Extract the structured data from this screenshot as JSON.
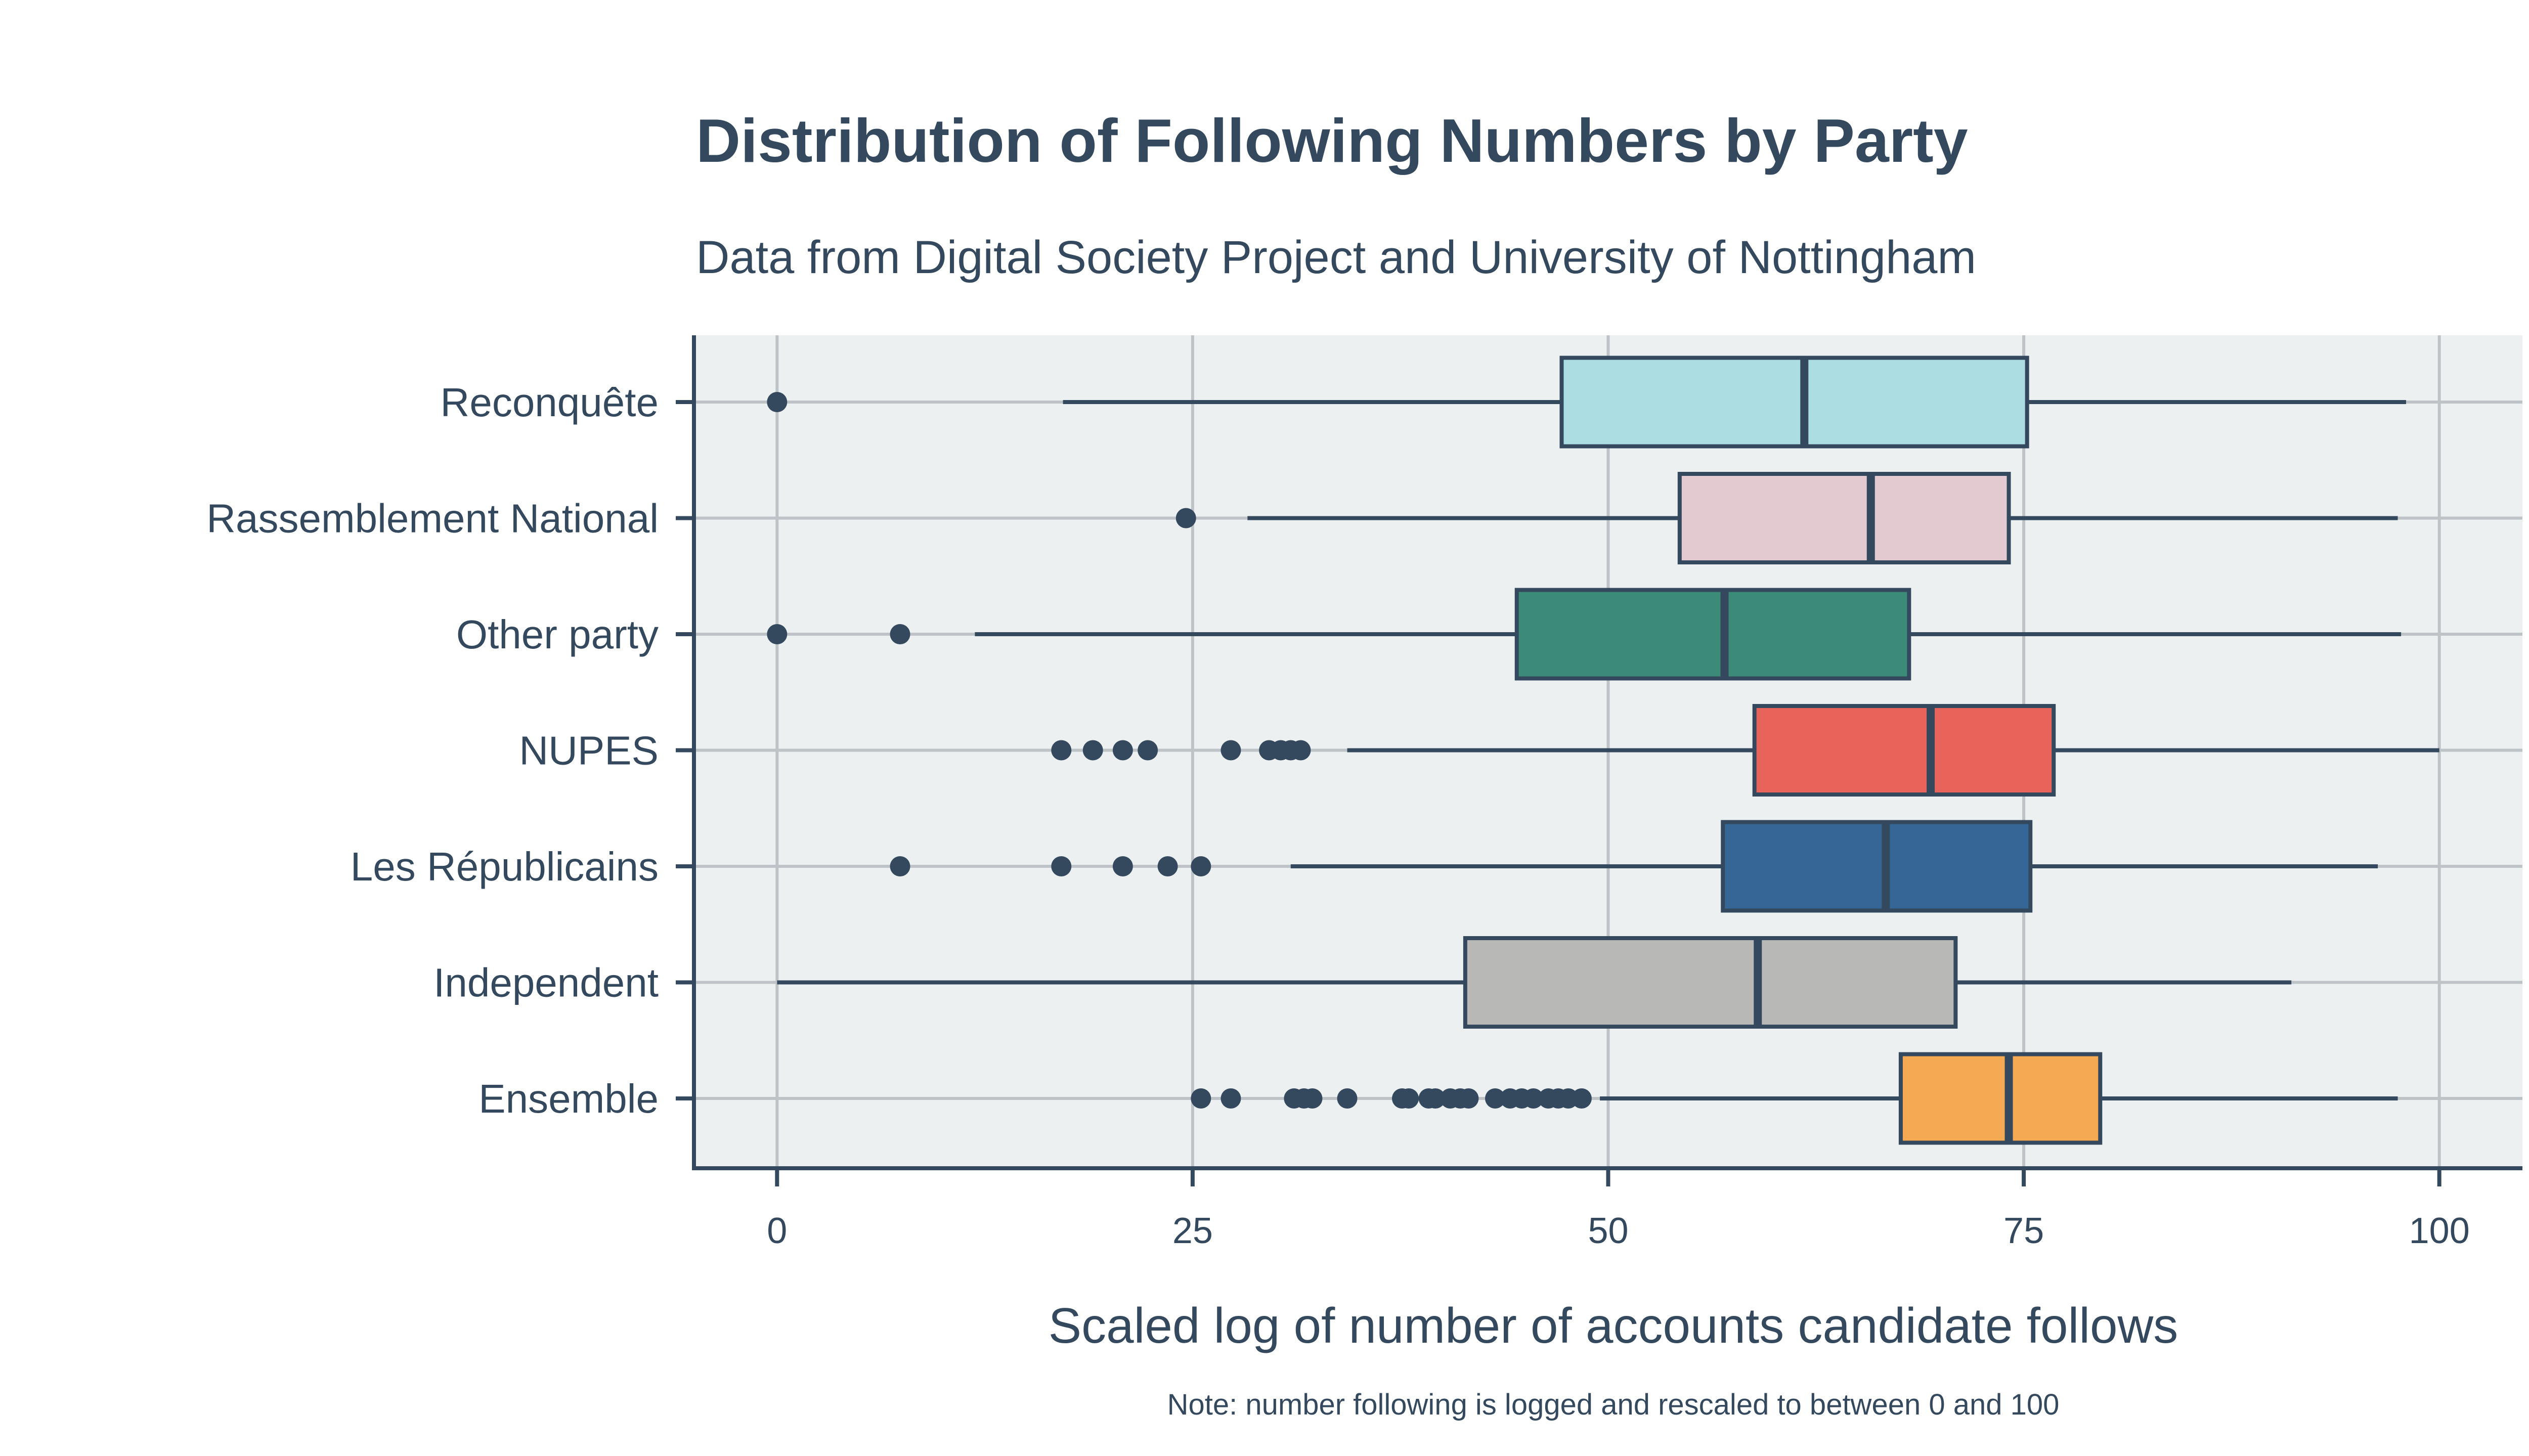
{
  "chart_data": {
    "type": "boxplot",
    "title": "Distribution of Following Numbers by Party",
    "subtitle": "Data from Digital Society Project and University of Nottingham",
    "xlabel": "Scaled log of number of accounts candidate follows",
    "note": "Note: number following is logged and rescaled to between 0 and 100",
    "xlim": [
      -5,
      105
    ],
    "xticks": [
      0,
      25,
      50,
      75,
      100
    ],
    "xtick_labels": [
      "0",
      "25",
      "50",
      "75",
      "100"
    ],
    "grid": true,
    "text_color": "#34495e",
    "panel_color": "#ecf0f1",
    "grid_color": "#bdc3c7",
    "categories": [
      "Reconquête",
      "Rassemblement National",
      "Other party",
      "NUPES",
      "Les Républicains",
      "Independent",
      "Ensemble"
    ],
    "boxes": [
      {
        "category": "Reconquête",
        "whisker_low": 17.2,
        "q1": 47.2,
        "median": 61.8,
        "q3": 75.2,
        "whisker_high": 98.0,
        "outliers": [
          0
        ],
        "color": "#abdde2"
      },
      {
        "category": "Rassemblement National",
        "whisker_low": 28.3,
        "q1": 54.3,
        "median": 65.8,
        "q3": 74.1,
        "whisker_high": 97.5,
        "outliers": [
          24.6
        ],
        "color": "#e3cad0"
      },
      {
        "category": "Other party",
        "whisker_low": 11.9,
        "q1": 44.5,
        "median": 57.0,
        "q3": 68.1,
        "whisker_high": 97.7,
        "outliers": [
          0,
          7.4
        ],
        "color": "#3c8a78"
      },
      {
        "category": "NUPES",
        "whisker_low": 34.3,
        "q1": 58.8,
        "median": 69.4,
        "q3": 76.8,
        "whisker_high": 100,
        "outliers": [
          17.1,
          19.0,
          20.8,
          22.3,
          27.3,
          29.6,
          30.3,
          30.9,
          31.5
        ],
        "color": "#e8635a"
      },
      {
        "category": "Les Républicains",
        "whisker_low": 30.9,
        "q1": 56.9,
        "median": 66.7,
        "q3": 75.4,
        "whisker_high": 96.3,
        "outliers": [
          7.4,
          17.1,
          20.8,
          23.5,
          25.5
        ],
        "color": "#356696"
      },
      {
        "category": "Independent",
        "whisker_low": 0,
        "q1": 41.4,
        "median": 59.0,
        "q3": 70.9,
        "whisker_high": 91.1,
        "outliers": [],
        "color": "#b8b8b6"
      },
      {
        "category": "Ensemble",
        "whisker_low": 49.5,
        "q1": 67.6,
        "median": 74.1,
        "q3": 79.6,
        "whisker_high": 97.5,
        "outliers": [
          25.5,
          27.3,
          31.1,
          31.7,
          32.2,
          34.3,
          37.6,
          38.0,
          39.2,
          39.6,
          40.5,
          41.1,
          41.6,
          43.2,
          44.1,
          44.8,
          45.5,
          46.4,
          47.0,
          47.6,
          48.4
        ],
        "color": "#f5a952"
      }
    ]
  }
}
